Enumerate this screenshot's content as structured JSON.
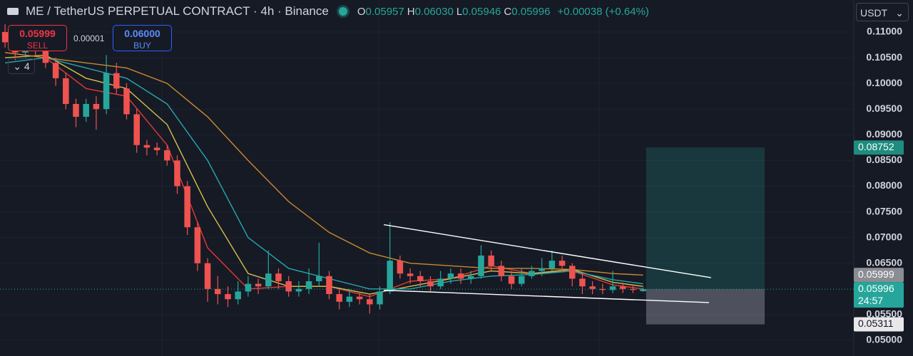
{
  "toolbar": {
    "symbol": "ME / TetherUS PERPETUAL CONTRACT · 4h · Binance",
    "ohlc": [
      {
        "key": "O",
        "value": "0.05957"
      },
      {
        "key": "H",
        "value": "0.06030"
      },
      {
        "key": "L",
        "value": "0.05946"
      },
      {
        "key": "C",
        "value": "0.05996"
      }
    ],
    "change": "+0.00038 (+0.64%)",
    "sell": {
      "price": "0.05999",
      "label": "SELL"
    },
    "spread": "0.00001",
    "buy": {
      "price": "0.06000",
      "label": "BUY"
    },
    "indicators": "4",
    "currency": "USDT",
    "countdown": "24:57"
  },
  "chart_data": {
    "type": "candlestick",
    "xlim": [
      -0.5,
      83.8
    ],
    "ylim": [
      0.04695,
      0.11623
    ],
    "yticks": [
      {
        "value": 0.11,
        "label": "0.11000"
      },
      {
        "value": 0.105,
        "label": "0.10500"
      },
      {
        "value": 0.1,
        "label": "0.10000"
      },
      {
        "value": 0.095,
        "label": "0.09500"
      },
      {
        "value": 0.09,
        "label": "0.09000"
      },
      {
        "value": 0.085,
        "label": "0.08500"
      },
      {
        "value": 0.08,
        "label": "0.08000"
      },
      {
        "value": 0.075,
        "label": "0.07500"
      },
      {
        "value": 0.07,
        "label": "0.07000"
      },
      {
        "value": 0.065,
        "label": "0.06500"
      },
      {
        "value": 0.055,
        "label": "0.05500"
      },
      {
        "value": 0.05,
        "label": "0.05000"
      }
    ],
    "up_color": "#26a69a",
    "down_color": "#ef5350",
    "open": [
      0.11,
      0.108,
      0.106,
      0.109,
      0.107,
      0.104,
      0.101,
      0.096,
      0.0935,
      0.096,
      0.095,
      0.102,
      0.099,
      0.094,
      0.088,
      0.0875,
      0.087,
      0.085,
      0.08,
      0.072,
      0.065,
      0.06,
      0.059,
      0.058,
      0.0595,
      0.061,
      0.0605,
      0.063,
      0.0615,
      0.0595,
      0.06,
      0.0615,
      0.0625,
      0.059,
      0.0575,
      0.0585,
      0.058,
      0.057,
      0.0595,
      0.0655,
      0.063,
      0.0625,
      0.0615,
      0.0605,
      0.062,
      0.063,
      0.062,
      0.0625,
      0.0665,
      0.0645,
      0.0625,
      0.061,
      0.0625,
      0.0635,
      0.064,
      0.0655,
      0.0645,
      0.062,
      0.0605,
      0.06,
      0.0598,
      0.0605,
      0.06,
      0.05957
    ],
    "high": [
      0.1115,
      0.109,
      0.11,
      0.11,
      0.108,
      0.105,
      0.102,
      0.097,
      0.097,
      0.0975,
      0.1055,
      0.104,
      0.1,
      0.095,
      0.089,
      0.0885,
      0.088,
      0.086,
      0.081,
      0.073,
      0.066,
      0.0625,
      0.0605,
      0.0615,
      0.0625,
      0.062,
      0.0675,
      0.064,
      0.0625,
      0.0615,
      0.064,
      0.069,
      0.0635,
      0.06,
      0.06,
      0.0595,
      0.059,
      0.0605,
      0.073,
      0.0665,
      0.064,
      0.0635,
      0.0625,
      0.0635,
      0.064,
      0.064,
      0.0635,
      0.0685,
      0.0675,
      0.0655,
      0.0635,
      0.064,
      0.0645,
      0.066,
      0.0675,
      0.0665,
      0.065,
      0.063,
      0.0615,
      0.061,
      0.0635,
      0.0612,
      0.0608,
      0.0603
    ],
    "low": [
      0.107,
      0.1045,
      0.105,
      0.1055,
      0.103,
      0.0995,
      0.095,
      0.0915,
      0.0925,
      0.091,
      0.094,
      0.098,
      0.093,
      0.0865,
      0.086,
      0.086,
      0.084,
      0.0785,
      0.0705,
      0.0635,
      0.0575,
      0.057,
      0.0565,
      0.057,
      0.0585,
      0.059,
      0.06,
      0.06,
      0.0585,
      0.0585,
      0.059,
      0.0605,
      0.058,
      0.056,
      0.0565,
      0.057,
      0.0552,
      0.056,
      0.059,
      0.062,
      0.061,
      0.0605,
      0.0595,
      0.06,
      0.061,
      0.061,
      0.061,
      0.062,
      0.0635,
      0.0615,
      0.06,
      0.0605,
      0.062,
      0.0625,
      0.0635,
      0.0635,
      0.0605,
      0.059,
      0.059,
      0.059,
      0.0592,
      0.0592,
      0.0592,
      0.05946
    ],
    "close": [
      0.108,
      0.106,
      0.109,
      0.107,
      0.104,
      0.101,
      0.096,
      0.0935,
      0.096,
      0.095,
      0.102,
      0.099,
      0.094,
      0.088,
      0.0875,
      0.087,
      0.085,
      0.08,
      0.072,
      0.065,
      0.06,
      0.059,
      0.058,
      0.0595,
      0.061,
      0.0605,
      0.063,
      0.0615,
      0.0595,
      0.06,
      0.0615,
      0.0625,
      0.059,
      0.0575,
      0.0585,
      0.058,
      0.057,
      0.0595,
      0.0655,
      0.063,
      0.0625,
      0.0615,
      0.0605,
      0.062,
      0.063,
      0.062,
      0.0625,
      0.0665,
      0.0645,
      0.0625,
      0.061,
      0.0625,
      0.0635,
      0.064,
      0.0655,
      0.0645,
      0.062,
      0.0605,
      0.06,
      0.0598,
      0.0605,
      0.06,
      0.0598,
      0.05996
    ],
    "ma_x": [
      0,
      4,
      8,
      12,
      16,
      20,
      24,
      28,
      32,
      36,
      40,
      44,
      48,
      52,
      56,
      60,
      63
    ],
    "moving_averages": [
      {
        "color": "#e53935",
        "values": [
          0.106,
          0.105,
          0.099,
          0.0975,
          0.088,
          0.068,
          0.06,
          0.0605,
          0.0605,
          0.0585,
          0.0615,
          0.062,
          0.0645,
          0.063,
          0.0635,
          0.0608,
          0.06
        ]
      },
      {
        "color": "#d4c24a",
        "values": [
          0.105,
          0.1055,
          0.101,
          0.099,
          0.092,
          0.076,
          0.063,
          0.0605,
          0.0605,
          0.059,
          0.0605,
          0.062,
          0.0635,
          0.063,
          0.0638,
          0.0613,
          0.0605
        ]
      },
      {
        "color": "#26a9b0",
        "values": [
          0.104,
          0.105,
          0.103,
          0.101,
          0.096,
          0.085,
          0.07,
          0.064,
          0.062,
          0.06,
          0.06,
          0.0615,
          0.0625,
          0.0628,
          0.0635,
          0.0618,
          0.061
        ]
      },
      {
        "color": "#c98a2c",
        "values": [
          0.106,
          0.105,
          0.104,
          0.103,
          0.1,
          0.0935,
          0.085,
          0.077,
          0.071,
          0.067,
          0.065,
          0.0645,
          0.064,
          0.064,
          0.0638,
          0.063,
          0.0627
        ]
      }
    ],
    "trendlines": [
      {
        "x": [
          37.4,
          69.7
        ],
        "y": [
          0.0725,
          0.0622
        ]
      },
      {
        "x": [
          37.4,
          69.5
        ],
        "y": [
          0.05975,
          0.05735
        ]
      }
    ],
    "position": {
      "x": [
        63.3,
        75
      ],
      "target": 0.08752,
      "entry": 0.05996,
      "stop": 0.05311
    }
  }
}
